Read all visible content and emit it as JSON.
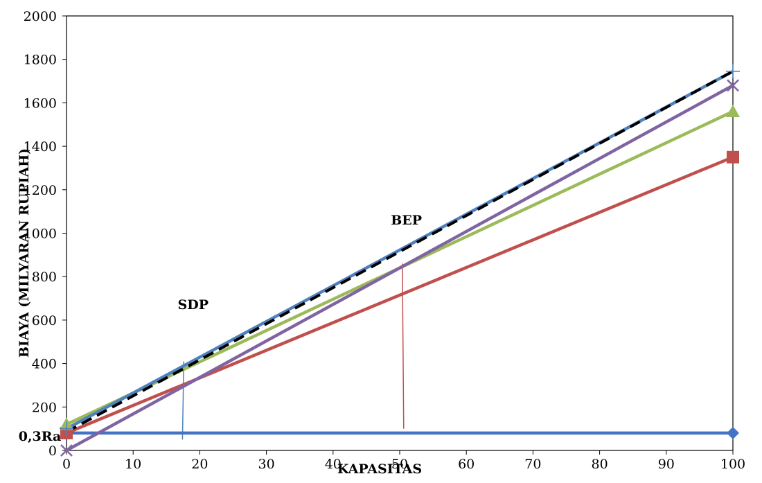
{
  "chart_data": {
    "type": "line",
    "xlabel": "KAPASITAS",
    "ylabel": "BIAYA (MILYARAN RUPIAH)",
    "xlim": [
      0,
      100
    ],
    "ylim": [
      0,
      2000
    ],
    "x_ticks": [
      0,
      10,
      20,
      30,
      40,
      50,
      60,
      70,
      80,
      90,
      100
    ],
    "y_ticks": [
      0,
      200,
      400,
      600,
      800,
      1000,
      1200,
      1400,
      1600,
      1800,
      2000
    ],
    "grid": false,
    "series": [
      {
        "color": "#4472c4",
        "marker": "diamond",
        "dashed": false,
        "x": [
          0,
          100
        ],
        "y": [
          80,
          80
        ]
      },
      {
        "color": "#c0504d",
        "marker": "square",
        "dashed": false,
        "x": [
          0,
          100
        ],
        "y": [
          80,
          1350
        ]
      },
      {
        "color": "#9bbb59",
        "marker": "triangle",
        "dashed": false,
        "x": [
          0,
          100
        ],
        "y": [
          120,
          1560
        ]
      },
      {
        "color": "#8064a2",
        "marker": "x",
        "dashed": false,
        "x": [
          0,
          100
        ],
        "y": [
          0,
          1680
        ]
      },
      {
        "color": "#4f81bd",
        "marker": "plus",
        "dashed": false,
        "x": [
          0,
          100
        ],
        "y": [
          100,
          1745
        ]
      },
      {
        "color": "#000000",
        "marker": "none",
        "dashed": true,
        "x": [
          0,
          100
        ],
        "y": [
          85,
          1745
        ]
      }
    ],
    "annotations": [
      {
        "text": "SDP",
        "x": 19,
        "y": 650
      },
      {
        "text": "BEP",
        "x": 51,
        "y": 1040
      },
      {
        "text": "0,3Ra",
        "x": -4,
        "y": 45
      }
    ],
    "reference_lines": [
      {
        "color": "#4f81bd",
        "x1": 17.4,
        "y1": 50,
        "x2": 17.6,
        "y2": 410
      },
      {
        "color": "#c0504d",
        "x1": 50.6,
        "y1": 100,
        "x2": 50.4,
        "y2": 860
      }
    ]
  }
}
